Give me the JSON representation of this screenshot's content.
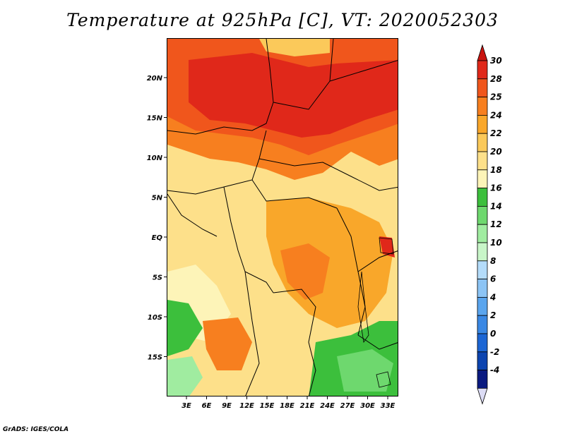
{
  "title": "Temperature at 925hPa [C], VT: 2020052303",
  "credit": "GrADS: IGES/COLA",
  "map": {
    "region": "Central Africa",
    "projection": "latlon",
    "lon_range": [
      0,
      34
    ],
    "lat_range": [
      -20,
      24
    ],
    "lat_ticks": [
      "20N",
      "15N",
      "10N",
      "5N",
      "EQ",
      "5S",
      "10S",
      "15S"
    ],
    "lon_ticks": [
      "3E",
      "6E",
      "9E",
      "12E",
      "15E",
      "18E",
      "21E",
      "24E",
      "27E",
      "30E",
      "33E"
    ]
  },
  "colorbar": {
    "levels": [
      "30",
      "28",
      "25",
      "24",
      "22",
      "20",
      "18",
      "16",
      "14",
      "12",
      "10",
      "8",
      "6",
      "4",
      "2",
      "0",
      "-2",
      "-4"
    ],
    "colors": [
      "#e0281a",
      "#f0561c",
      "#f77f1f",
      "#f9a72a",
      "#fbc95a",
      "#fde08a",
      "#fdf4b8",
      "#3cbf3c",
      "#6ed86e",
      "#a0eca0",
      "#c8f5c8",
      "#b4dcfa",
      "#8cc4f5",
      "#5aa5ee",
      "#3a88e4",
      "#1c66d4",
      "#0c44b0",
      "#0a1a80"
    ],
    "top_arrow_color": "#c8140f",
    "bottom_arrow_color": "#dcdcf5"
  }
}
